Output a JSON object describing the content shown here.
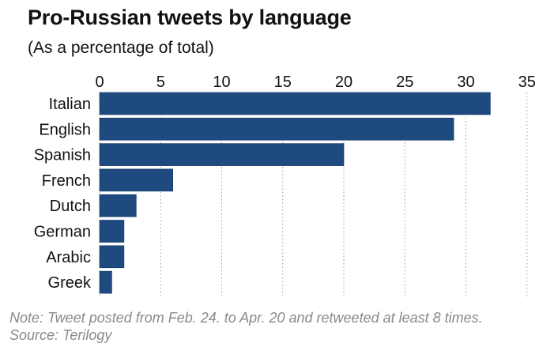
{
  "chart_data": {
    "type": "bar",
    "orientation": "horizontal",
    "title": "Pro-Russian tweets by language",
    "subtitle": "(As a percentage of total)",
    "categories": [
      "Italian",
      "English",
      "Spanish",
      "French",
      "Dutch",
      "German",
      "Arabic",
      "Greek"
    ],
    "values": [
      32,
      29,
      20,
      6,
      3,
      2,
      2,
      1
    ],
    "xlim": [
      0,
      35
    ],
    "xticks": [
      0,
      5,
      10,
      15,
      20,
      25,
      30,
      35
    ],
    "x_axis_position": "top",
    "grid": "vertical dotted",
    "bar_color": "#1e4a80",
    "note": "Note: Tweet posted from Feb. 24. to Apr. 20 and retweeted at least 8 times.",
    "source": "Source: Terilogy"
  }
}
